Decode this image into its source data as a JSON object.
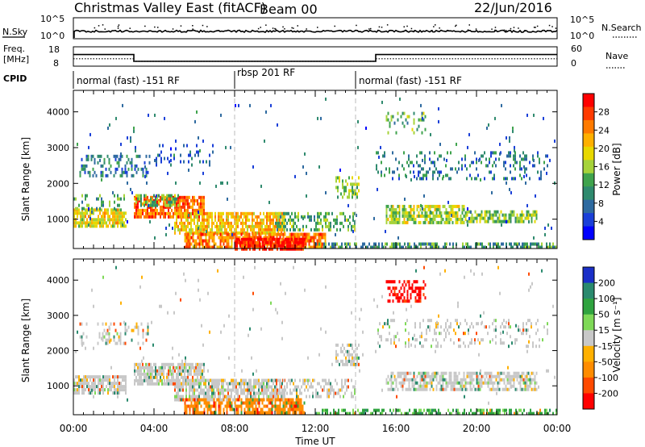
{
  "header": {
    "station": "Christmas Valley East (fitACF)",
    "beam": "Beam 00",
    "date": "22/Jun/2016"
  },
  "left_labels": {
    "nsky": "N.Sky",
    "freq_line1": "Freq.",
    "freq_line2": "[MHz]",
    "cpid": "CPID"
  },
  "right_labels": {
    "nsearch": "N.Search",
    "nave": "Nave"
  },
  "noise_axis": {
    "left_ticks": [
      "10^5",
      "10^0"
    ],
    "right_ticks": [
      "10^5",
      "10^0"
    ]
  },
  "freq_axis": {
    "left_ticks": [
      "18",
      "8"
    ],
    "right_ticks": [
      "60",
      "0"
    ]
  },
  "cpid_segments": [
    {
      "label": "normal (fast) -151 RF",
      "start_h": 0,
      "end_h": 8
    },
    {
      "label": "rbsp 201 RF",
      "start_h": 8,
      "end_h": 14
    },
    {
      "label": "normal (fast) -151 RF",
      "start_h": 14,
      "end_h": 24
    }
  ],
  "chart_data": [
    {
      "type": "line",
      "name": "noise",
      "series": [
        {
          "name": "N.Sky",
          "style": "solid",
          "description_values": "near-constant ~10^2 with scattered spikes"
        },
        {
          "name": "N.Search",
          "style": "dotted"
        }
      ],
      "x_range": [
        0,
        24
      ]
    },
    {
      "type": "line",
      "name": "freq_nave",
      "x": [
        0,
        3,
        3,
        15,
        15,
        24
      ],
      "freq_mhz": [
        14.0,
        14.0,
        10.5,
        10.5,
        14.0,
        14.0
      ],
      "nave": [
        23,
        23,
        15,
        15,
        23,
        23
      ],
      "ylim_freq": [
        8,
        18
      ],
      "ylim_nave": [
        0,
        60
      ]
    },
    {
      "type": "heatmap",
      "name": "power",
      "ylabel": "Slant Range [km]",
      "yticks": [
        "4000",
        "3000",
        "2000",
        "1000"
      ],
      "ylim": [
        180,
        4600
      ],
      "xlim": [
        0,
        24
      ],
      "colorbar_label": "Power [dB]",
      "colorbar_ticks": [
        "28",
        "24",
        "20",
        "16",
        "12",
        "8",
        "4"
      ],
      "colorbar_colors": [
        "#ff0000",
        "#ff3a00",
        "#ff7a00",
        "#ffb000",
        "#e8d800",
        "#a6d33a",
        "#3fa34d",
        "#2f8a6e",
        "#2e6aa0",
        "#1a3fd8",
        "#0000ff"
      ],
      "regions": [
        {
          "x0": 0.0,
          "x1": 2.6,
          "y0": 800,
          "y1": 1300,
          "level": 18,
          "density": 0.75
        },
        {
          "x0": 0.0,
          "x1": 2.6,
          "y0": 1300,
          "y1": 1700,
          "level": 11,
          "density": 0.25
        },
        {
          "x0": 0.3,
          "x1": 3.8,
          "y0": 2250,
          "y1": 2800,
          "level": 7,
          "density": 0.35
        },
        {
          "x0": 3.0,
          "x1": 6.5,
          "y0": 1050,
          "y1": 1650,
          "level": 25,
          "density": 0.8
        },
        {
          "x0": 3.0,
          "x1": 5.2,
          "y0": 1400,
          "y1": 1700,
          "level": 13,
          "density": 0.5
        },
        {
          "x0": 4.0,
          "x1": 7.0,
          "y0": 2500,
          "y1": 3100,
          "level": 6,
          "density": 0.12
        },
        {
          "x0": 5.0,
          "x1": 10.5,
          "y0": 600,
          "y1": 1200,
          "level": 20,
          "density": 0.75
        },
        {
          "x0": 5.5,
          "x1": 12.5,
          "y0": 200,
          "y1": 620,
          "level": 24,
          "density": 0.8
        },
        {
          "x0": 8.0,
          "x1": 11.5,
          "y0": 200,
          "y1": 480,
          "level": 30,
          "density": 0.85
        },
        {
          "x0": 10.0,
          "x1": 14.0,
          "y0": 700,
          "y1": 1200,
          "level": 12,
          "density": 0.45
        },
        {
          "x0": 12.0,
          "x1": 24.0,
          "y0": 200,
          "y1": 350,
          "level": 10,
          "density": 0.55
        },
        {
          "x0": 13.0,
          "x1": 14.2,
          "y0": 1600,
          "y1": 2200,
          "level": 14,
          "density": 0.5
        },
        {
          "x0": 15.5,
          "x1": 19.5,
          "y0": 900,
          "y1": 1400,
          "level": 16,
          "density": 0.65
        },
        {
          "x0": 19.5,
          "x1": 23.0,
          "y0": 900,
          "y1": 1250,
          "level": 14,
          "density": 0.6
        },
        {
          "x0": 15.5,
          "x1": 17.5,
          "y0": 3400,
          "y1": 4000,
          "level": 12,
          "density": 0.35
        },
        {
          "x0": 15.0,
          "x1": 23.5,
          "y0": 2100,
          "y1": 2900,
          "level": 8,
          "density": 0.22
        },
        {
          "x0": 0.0,
          "x1": 24.0,
          "y0": 500,
          "y1": 4400,
          "level": 6,
          "density": 0.012
        }
      ]
    },
    {
      "type": "heatmap",
      "name": "velocity",
      "ylabel": "Slant Range [km]",
      "yticks": [
        "4000",
        "3000",
        "2000",
        "1000"
      ],
      "ylim": [
        180,
        4600
      ],
      "xlim": [
        0,
        24
      ],
      "xticks": [
        "00:00",
        "04:00",
        "08:00",
        "12:00",
        "16:00",
        "20:00",
        "00:00"
      ],
      "xlabel": "Time UT",
      "colorbar_label": "Velocity [m s⁻¹]",
      "colorbar_ticks": [
        "200",
        "100",
        "50",
        "15",
        "-15",
        "-50",
        "-100",
        "-200"
      ],
      "colorbar_colors": [
        "#1a2fc8",
        "#2a8a6e",
        "#2fa33f",
        "#7ed957",
        "#c8c8c8",
        "#ffb000",
        "#ff8c00",
        "#ff4a00",
        "#ff0000"
      ],
      "regions": [
        {
          "x0": 0.0,
          "x1": 2.6,
          "y0": 800,
          "y1": 1300,
          "vel": 0,
          "density": 0.75
        },
        {
          "x0": 0.3,
          "x1": 3.8,
          "y0": 2250,
          "y1": 2800,
          "vel": 0,
          "density": 0.25
        },
        {
          "x0": 3.0,
          "x1": 6.5,
          "y0": 1050,
          "y1": 1650,
          "vel": 0,
          "density": 0.8
        },
        {
          "x0": 5.0,
          "x1": 10.5,
          "y0": 600,
          "y1": 1200,
          "vel": 0,
          "density": 0.75
        },
        {
          "x0": 5.5,
          "x1": 11.5,
          "y0": 250,
          "y1": 650,
          "vel": -60,
          "density": 0.7
        },
        {
          "x0": 10.0,
          "x1": 14.0,
          "y0": 700,
          "y1": 1200,
          "vel": 0,
          "density": 0.45
        },
        {
          "x0": 12.0,
          "x1": 24.0,
          "y0": 200,
          "y1": 350,
          "vel": 40,
          "density": 0.5
        },
        {
          "x0": 13.0,
          "x1": 14.2,
          "y0": 1600,
          "y1": 2200,
          "vel": 0,
          "density": 0.5
        },
        {
          "x0": 15.5,
          "x1": 23.0,
          "y0": 900,
          "y1": 1400,
          "vel": 0,
          "density": 0.65
        },
        {
          "x0": 15.5,
          "x1": 17.5,
          "y0": 3400,
          "y1": 4000,
          "vel": -220,
          "density": 0.4
        },
        {
          "x0": 15.0,
          "x1": 23.5,
          "y0": 2100,
          "y1": 2900,
          "vel": 0,
          "density": 0.2
        },
        {
          "x0": 0.0,
          "x1": 24.0,
          "y0": 500,
          "y1": 4400,
          "vel": 0,
          "density": 0.012
        }
      ]
    }
  ]
}
